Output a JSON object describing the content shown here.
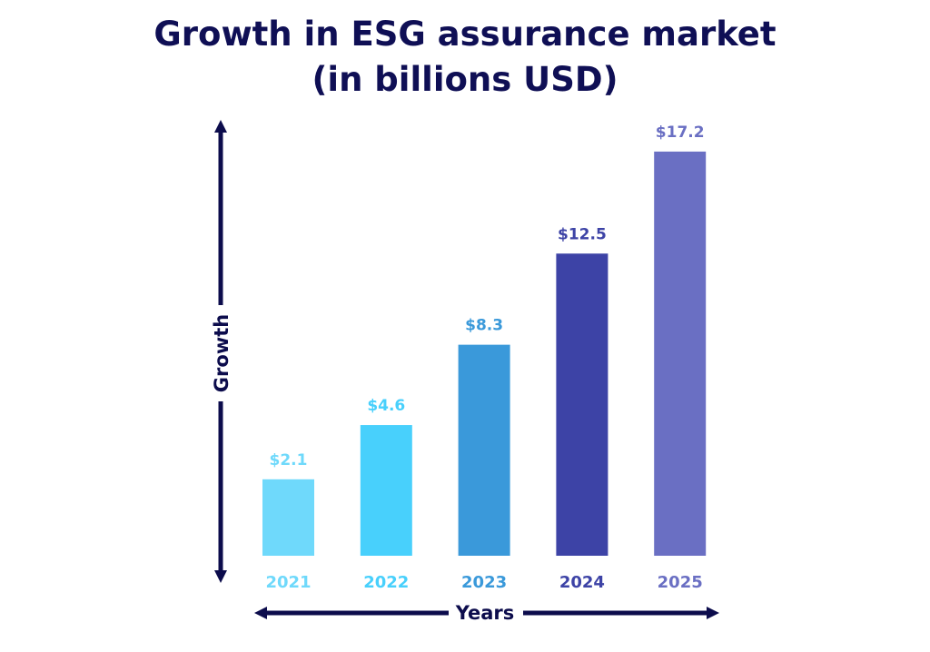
{
  "chart_data": {
    "type": "bar",
    "title": [
      "Growth in ESG assurance market",
      "(in billions USD)"
    ],
    "xlabel": "Years",
    "ylabel": "Growth",
    "categories": [
      "2021",
      "2022",
      "2023",
      "2024",
      "2025"
    ],
    "values": [
      2.1,
      4.6,
      8.3,
      12.5,
      17.2
    ],
    "data_labels": [
      "$2.1",
      "$4.6",
      "$8.3",
      "$12.5",
      "$17.2"
    ],
    "colors": [
      "#6fd9fb",
      "#48d0fc",
      "#3a99da",
      "#3d43a6",
      "#6a6fc3"
    ],
    "axis_color": "#0c0c4c",
    "title_color": "#0f0f55",
    "grid": false,
    "legend": "none"
  }
}
